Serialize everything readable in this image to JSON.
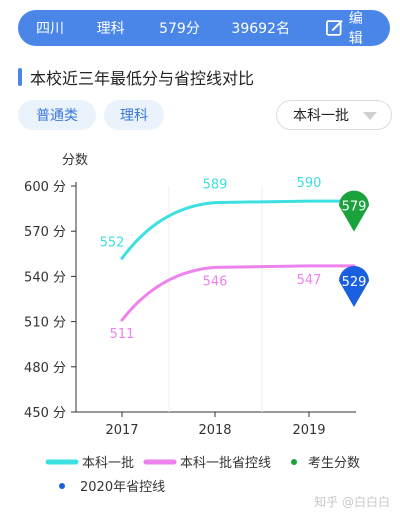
{
  "header": {
    "province": "四川",
    "subject": "理科",
    "score": "579分",
    "rank": "39692名",
    "edit_label": "编辑"
  },
  "section": {
    "title": "本校近三年最低分与省控线对比"
  },
  "filters": {
    "type_chip": "普通类",
    "subject_chip": "理科",
    "batch_select": "本科一批"
  },
  "colors": {
    "accent": "#4a86e8",
    "school_line": "#3de0e0",
    "province_line": "#ee82ee",
    "student_score": "#1aa33c",
    "province_2020": "#1a5fe0"
  },
  "chart_data": {
    "type": "line",
    "ylabel": "分数",
    "categories": [
      "2017",
      "2018",
      "2019"
    ],
    "ylim": [
      450,
      600
    ],
    "yticks": [
      "600 分",
      "570 分",
      "540 分",
      "510 分",
      "480 分",
      "450 分"
    ],
    "ytick_values": [
      600,
      570,
      540,
      510,
      480,
      450
    ],
    "series": [
      {
        "name": "本科一批",
        "values": [
          552,
          589,
          590
        ],
        "labels": [
          "552",
          "589",
          "590"
        ]
      },
      {
        "name": "本科一批省控线",
        "values": [
          511,
          546,
          547
        ],
        "labels": [
          "511",
          "546",
          "547"
        ]
      }
    ],
    "markers": [
      {
        "name": "考生分数",
        "value": 579,
        "label": "579"
      },
      {
        "name": "2020年省控线",
        "value": 529,
        "label": "529"
      }
    ],
    "legend_position": "bottom"
  },
  "watermark": "知乎 @白白白"
}
